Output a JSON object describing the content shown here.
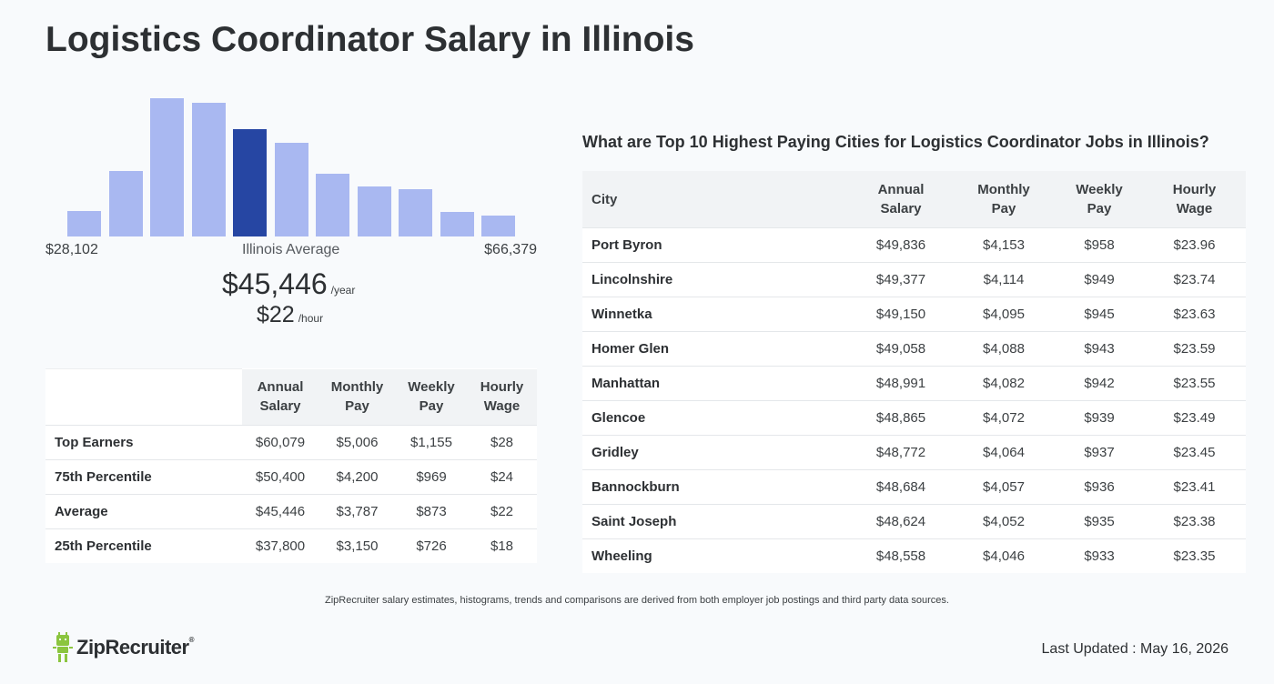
{
  "title": "Logistics Coordinator Salary in Illinois",
  "histogram": {
    "bar_values": [
      28,
      72,
      152,
      147,
      118,
      103,
      69,
      55,
      52,
      27,
      23
    ],
    "highlight_index": 4,
    "colors": {
      "bar": "#a9b8f1",
      "highlight": "#2646a3"
    }
  },
  "range": {
    "min": "$28,102",
    "max": "$66,379",
    "label": "Illinois Average"
  },
  "average": {
    "yearly": "$45,446",
    "yearly_unit": "/year",
    "hourly": "$22",
    "hourly_unit": "/hour"
  },
  "percentile_table": {
    "headers": [
      [
        "Annual",
        "Salary"
      ],
      [
        "Monthly",
        "Pay"
      ],
      [
        "Weekly",
        "Pay"
      ],
      [
        "Hourly",
        "Wage"
      ]
    ],
    "rows": [
      {
        "label": "Top Earners",
        "values": [
          "$60,079",
          "$5,006",
          "$1,155",
          "$28"
        ]
      },
      {
        "label": "75th Percentile",
        "values": [
          "$50,400",
          "$4,200",
          "$969",
          "$24"
        ]
      },
      {
        "label": "Average",
        "values": [
          "$45,446",
          "$3,787",
          "$873",
          "$22"
        ]
      },
      {
        "label": "25th Percentile",
        "values": [
          "$37,800",
          "$3,150",
          "$726",
          "$18"
        ]
      }
    ]
  },
  "cities": {
    "heading": "What are Top 10 Highest Paying Cities for Logistics Coordinator Jobs in Illinois?",
    "city_header": "City",
    "headers": [
      [
        "Annual",
        "Salary"
      ],
      [
        "Monthly",
        "Pay"
      ],
      [
        "Weekly",
        "Pay"
      ],
      [
        "Hourly",
        "Wage"
      ]
    ],
    "rows": [
      {
        "city": "Port Byron",
        "values": [
          "$49,836",
          "$4,153",
          "$958",
          "$23.96"
        ]
      },
      {
        "city": "Lincolnshire",
        "values": [
          "$49,377",
          "$4,114",
          "$949",
          "$23.74"
        ]
      },
      {
        "city": "Winnetka",
        "values": [
          "$49,150",
          "$4,095",
          "$945",
          "$23.63"
        ]
      },
      {
        "city": "Homer Glen",
        "values": [
          "$49,058",
          "$4,088",
          "$943",
          "$23.59"
        ]
      },
      {
        "city": "Manhattan",
        "values": [
          "$48,991",
          "$4,082",
          "$942",
          "$23.55"
        ]
      },
      {
        "city": "Glencoe",
        "values": [
          "$48,865",
          "$4,072",
          "$939",
          "$23.49"
        ]
      },
      {
        "city": "Gridley",
        "values": [
          "$48,772",
          "$4,064",
          "$937",
          "$23.45"
        ]
      },
      {
        "city": "Bannockburn",
        "values": [
          "$48,684",
          "$4,057",
          "$936",
          "$23.41"
        ]
      },
      {
        "city": "Saint Joseph",
        "values": [
          "$48,624",
          "$4,052",
          "$935",
          "$23.38"
        ]
      },
      {
        "city": "Wheeling",
        "values": [
          "$48,558",
          "$4,046",
          "$933",
          "$23.35"
        ]
      }
    ]
  },
  "footer": {
    "disclaimer": "ZipRecruiter salary estimates, histograms, trends and comparisons are derived from both employer job postings and third party data sources.",
    "logo_text": "ZipRecruiter",
    "logo_mark": "®",
    "updated": "Last Updated : May 16, 2026",
    "logo_color": "#8bc53f"
  }
}
